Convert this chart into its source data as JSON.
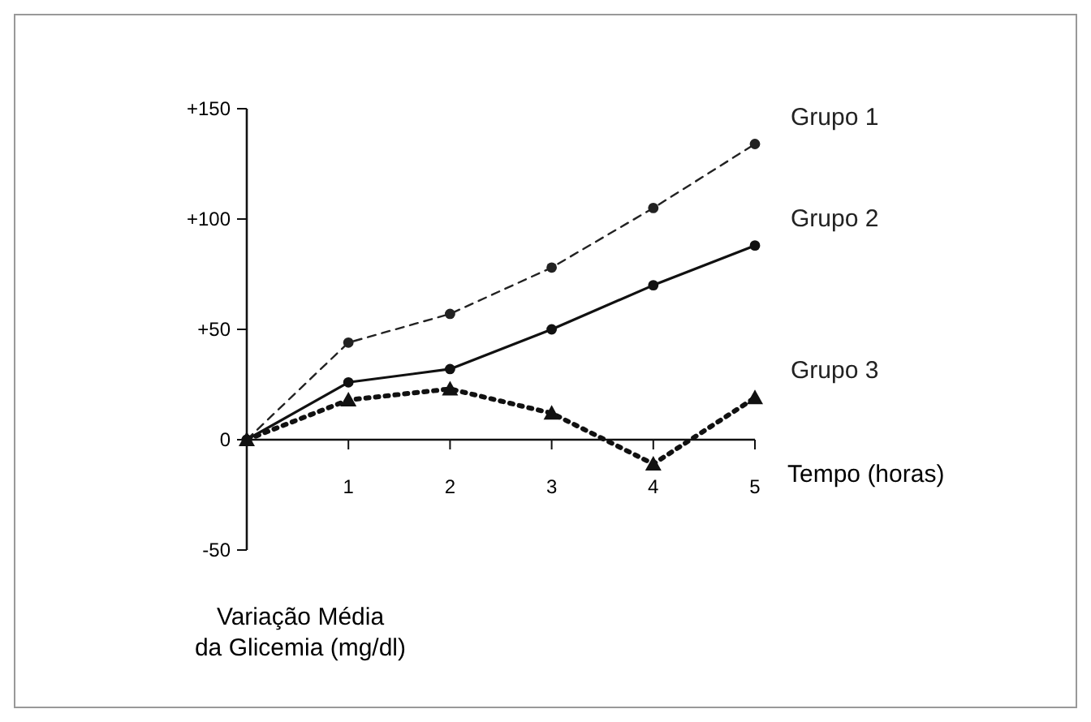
{
  "chart_data": {
    "type": "line",
    "xlabel": "Tempo (horas)",
    "ylabel": "Variação Média\nda Glicemia (mg/dl)",
    "x": [
      0,
      1,
      2,
      3,
      4,
      5
    ],
    "series": [
      {
        "name": "Grupo 1",
        "color": "#222222",
        "values": [
          0,
          44,
          57,
          78,
          105,
          134
        ],
        "marker": "circle",
        "line_style": "dashed"
      },
      {
        "name": "Grupo 2",
        "color": "#111111",
        "values": [
          0,
          26,
          32,
          50,
          70,
          88
        ],
        "marker": "circle",
        "line_style": "solid"
      },
      {
        "name": "Grupo 3",
        "color": "#111111",
        "values": [
          0,
          18,
          23,
          12,
          -11,
          19
        ],
        "marker": "triangle",
        "line_style": "dotted"
      }
    ],
    "xlim": [
      0,
      5
    ],
    "xticks": [
      1,
      2,
      3,
      4,
      5
    ],
    "ylim": [
      -50,
      150
    ],
    "yticks": [
      {
        "value": 150,
        "label": "+150"
      },
      {
        "value": 100,
        "label": "+100"
      },
      {
        "value": 50,
        "label": "+50"
      },
      0,
      -50
    ],
    "grid": false,
    "legend": false
  }
}
